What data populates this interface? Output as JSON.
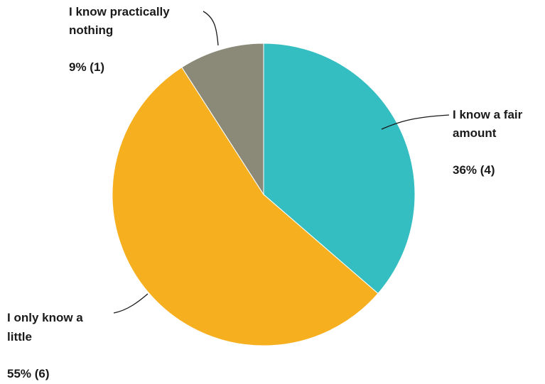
{
  "chart_data": {
    "type": "pie",
    "title": "",
    "slices": [
      {
        "label_lines": [
          "I know a fair",
          "amount"
        ],
        "percent_label": "36% (4)",
        "value": 4,
        "percent": 36,
        "color": "#35BEC1"
      },
      {
        "label_lines": [
          "I only know a",
          "little"
        ],
        "percent_label": "55% (6)",
        "value": 6,
        "percent": 55,
        "color": "#F6AF1E"
      },
      {
        "label_lines": [
          "I know practically",
          "nothing"
        ],
        "percent_label": "9% (1)",
        "value": 1,
        "percent": 9,
        "color": "#8B8A78"
      }
    ],
    "start_angle_deg": 0,
    "direction": "clockwise"
  }
}
